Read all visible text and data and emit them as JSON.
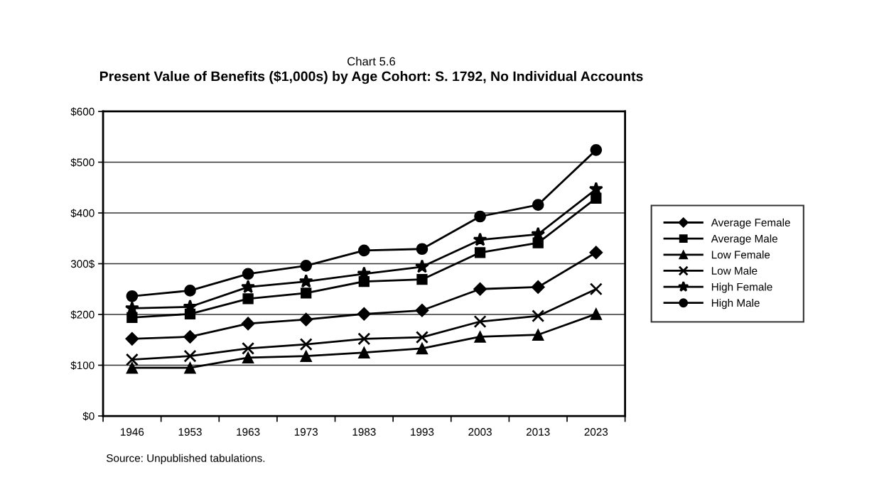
{
  "chart_data": {
    "type": "line",
    "title": "Chart 5.6",
    "subtitle": "Present Value of Benefits ($1,000s) by Age Cohort: S. 1792, No Individual Accounts",
    "categories": [
      "1946",
      "1953",
      "1963",
      "1973",
      "1983",
      "1993",
      "2003",
      "2013",
      "2023"
    ],
    "series": [
      {
        "name": "Average Female",
        "color": "#000000",
        "marker": "diamond",
        "values": [
          152,
          156,
          182,
          190,
          201,
          208,
          250,
          254,
          322
        ]
      },
      {
        "name": "Average Male",
        "color": "#000000",
        "marker": "square",
        "values": [
          194,
          201,
          231,
          242,
          265,
          269,
          322,
          341,
          429
        ]
      },
      {
        "name": "Low Female",
        "color": "#000000",
        "marker": "triangle",
        "values": [
          95,
          95,
          115,
          118,
          125,
          133,
          156,
          160,
          201
        ]
      },
      {
        "name": "Low Male",
        "color": "#000000",
        "marker": "cross",
        "values": [
          111,
          118,
          133,
          141,
          152,
          155,
          186,
          197,
          250
        ]
      },
      {
        "name": "High Female",
        "color": "#000000",
        "marker": "star",
        "values": [
          212,
          215,
          254,
          265,
          280,
          294,
          347,
          358,
          447
        ]
      },
      {
        "name": "High Male",
        "color": "#000000",
        "marker": "circle",
        "values": [
          236,
          247,
          280,
          296,
          326,
          329,
          393,
          416,
          524
        ]
      }
    ],
    "ylim": [
      0,
      600
    ],
    "yticks": [
      {
        "value": 0,
        "label": "$0"
      },
      {
        "value": 100,
        "label": "$100"
      },
      {
        "value": 200,
        "label": "$200"
      },
      {
        "value": 300,
        "label": "300$"
      },
      {
        "value": 400,
        "label": "$400"
      },
      {
        "value": 500,
        "label": "$500"
      },
      {
        "value": 600,
        "label": "$600"
      }
    ],
    "grid": "y",
    "legend": "right",
    "line_style": "solid",
    "annotations": [
      "Source: Unpublished tabulations."
    ]
  }
}
